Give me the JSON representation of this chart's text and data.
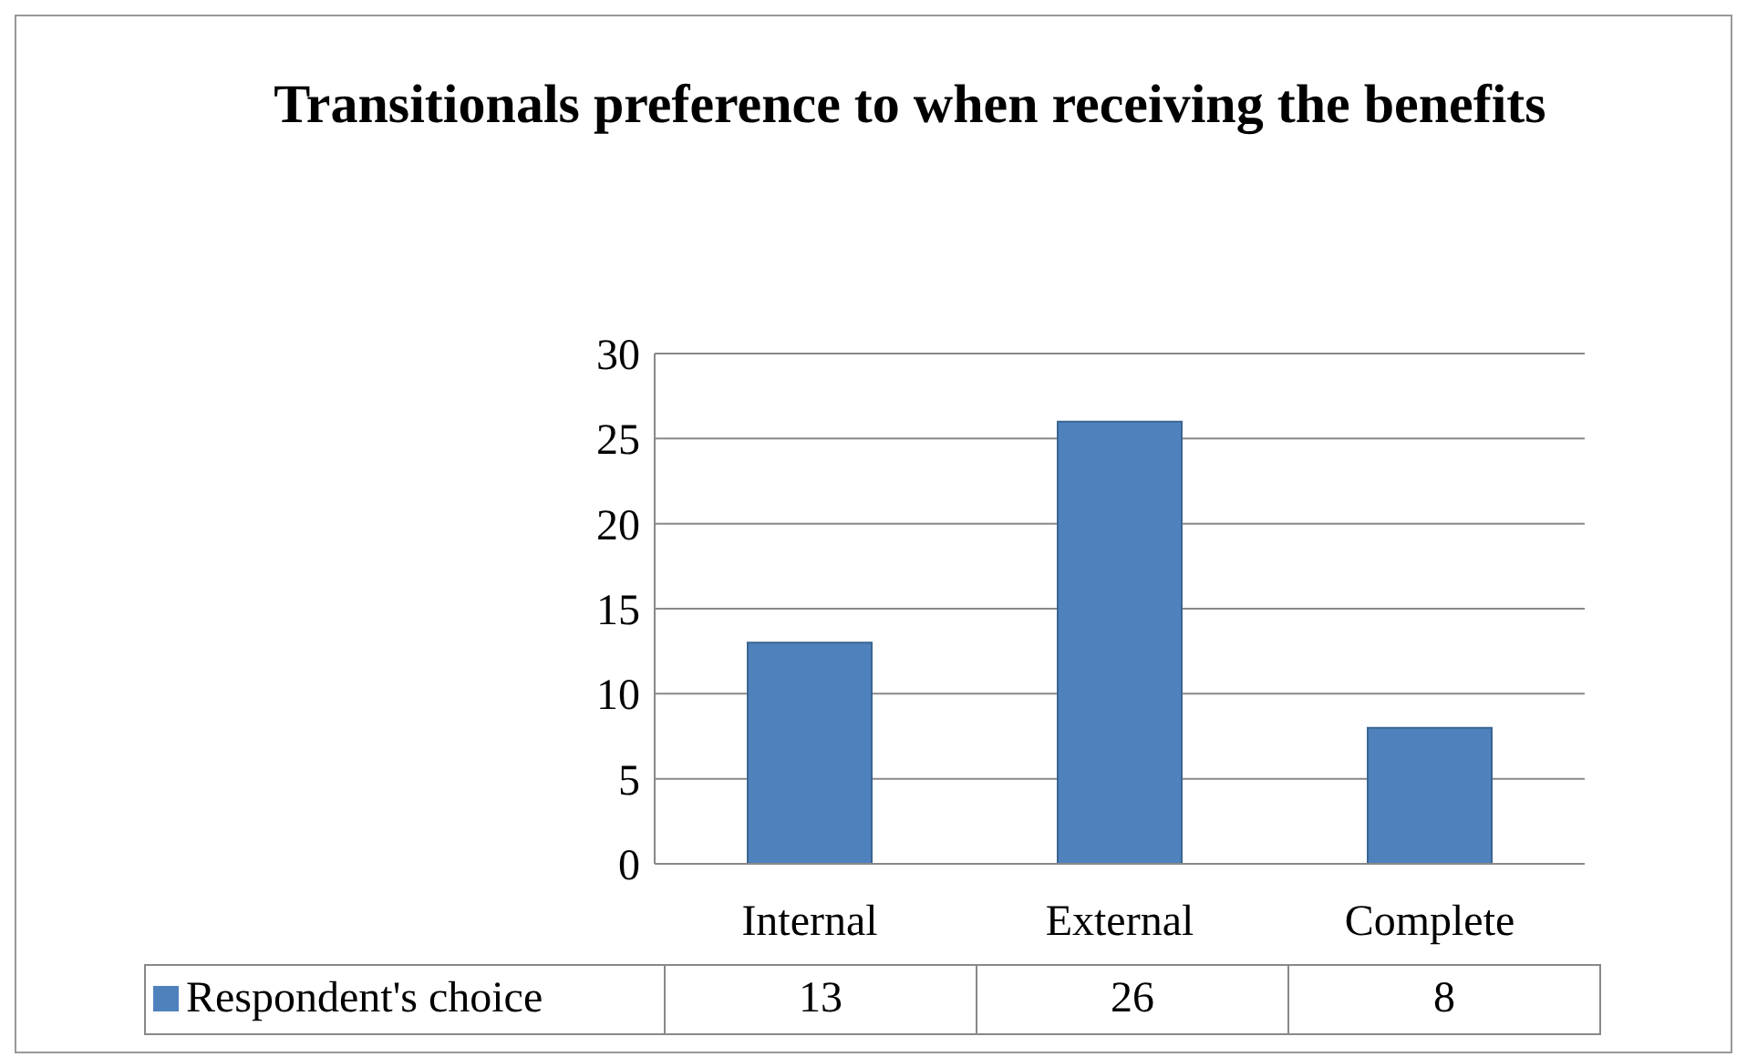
{
  "chart_data": {
    "type": "bar",
    "title": "Transitionals preference to when receiving the benefits",
    "categories": [
      "Internal",
      "External",
      "Complete"
    ],
    "series": [
      {
        "name": "Respondent's choice",
        "color": "#4f81bd",
        "values": [
          13,
          26,
          8
        ]
      }
    ],
    "ylim": [
      0,
      30
    ],
    "yticks": [
      0,
      5,
      10,
      15,
      20,
      25,
      30
    ],
    "grid": "y",
    "legend": "bottom",
    "data_labels": true
  }
}
